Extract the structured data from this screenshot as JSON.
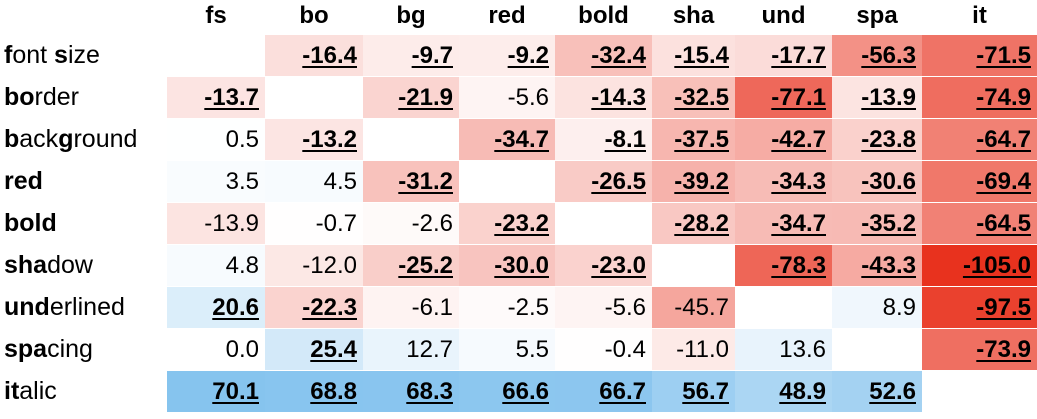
{
  "chart_data": {
    "type": "heatmap",
    "columns": [
      "fs",
      "bo",
      "bg",
      "red",
      "bold",
      "sha",
      "und",
      "spa",
      "it"
    ],
    "rows": [
      {
        "bold": "f",
        "rest": "ont ",
        "bold2": "s",
        "rest2": "ize"
      },
      {
        "bold": "bo",
        "rest": "rder",
        "bold2": "",
        "rest2": ""
      },
      {
        "bold": "b",
        "rest": "ack",
        "bold2": "g",
        "rest2": "round"
      },
      {
        "bold": "red",
        "rest": "",
        "bold2": "",
        "rest2": ""
      },
      {
        "bold": "bold",
        "rest": "",
        "bold2": "",
        "rest2": ""
      },
      {
        "bold": "sha",
        "rest": "dow",
        "bold2": "",
        "rest2": ""
      },
      {
        "bold": "und",
        "rest": "erlined",
        "bold2": "",
        "rest2": ""
      },
      {
        "bold": "spa",
        "rest": "cing",
        "bold2": "",
        "rest2": ""
      },
      {
        "bold": "it",
        "rest": "alic",
        "bold2": "",
        "rest2": ""
      }
    ],
    "values": [
      [
        null,
        -16.4,
        -9.7,
        -9.2,
        -32.4,
        -15.4,
        -17.7,
        -56.3,
        -71.5
      ],
      [
        -13.7,
        null,
        -21.9,
        -5.6,
        -14.3,
        -32.5,
        -77.1,
        -13.9,
        -74.9
      ],
      [
        0.5,
        -13.2,
        null,
        -34.7,
        -8.1,
        -37.5,
        -42.7,
        -23.8,
        -64.7
      ],
      [
        3.5,
        4.5,
        -31.2,
        null,
        -26.5,
        -39.2,
        -34.3,
        -30.6,
        -69.4
      ],
      [
        -13.9,
        -0.7,
        -2.6,
        -23.2,
        null,
        -28.2,
        -34.7,
        -35.2,
        -64.5
      ],
      [
        4.8,
        -12.0,
        -25.2,
        -30.0,
        -23.0,
        null,
        -78.3,
        -43.3,
        -105.0
      ],
      [
        20.6,
        -22.3,
        -6.1,
        -2.5,
        -5.6,
        -45.7,
        null,
        8.9,
        -97.5
      ],
      [
        0.0,
        25.4,
        12.7,
        5.5,
        -0.4,
        -11.0,
        13.6,
        null,
        -73.9
      ],
      [
        70.1,
        68.8,
        68.3,
        66.6,
        66.7,
        56.7,
        48.9,
        52.6,
        null
      ]
    ],
    "significant": [
      [
        false,
        true,
        true,
        true,
        true,
        true,
        true,
        true,
        true
      ],
      [
        true,
        false,
        true,
        false,
        true,
        true,
        true,
        true,
        true
      ],
      [
        false,
        true,
        false,
        true,
        true,
        true,
        true,
        true,
        true
      ],
      [
        false,
        false,
        true,
        false,
        true,
        true,
        true,
        true,
        true
      ],
      [
        false,
        false,
        false,
        true,
        false,
        true,
        true,
        true,
        true
      ],
      [
        false,
        false,
        true,
        true,
        true,
        false,
        true,
        true,
        true
      ],
      [
        true,
        true,
        false,
        false,
        false,
        false,
        false,
        false,
        true
      ],
      [
        false,
        true,
        false,
        false,
        false,
        false,
        false,
        false,
        true
      ],
      [
        true,
        true,
        true,
        true,
        true,
        true,
        true,
        true,
        false
      ]
    ],
    "colors": {
      "negative": "#e8321e",
      "positive": "#4aa6e6",
      "neutral": "#ffffff"
    },
    "color_max_abs": 105.0
  }
}
